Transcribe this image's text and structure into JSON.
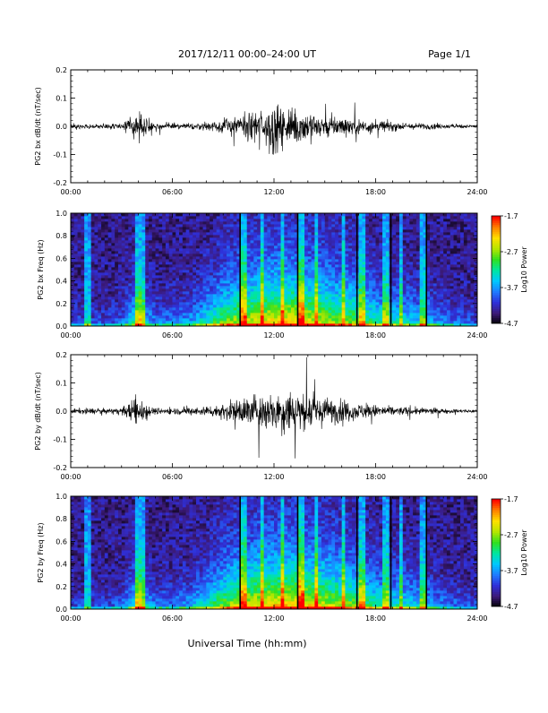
{
  "header": {
    "title": "2017/12/11   00:00–24:00 UT",
    "page": "Page 1/1"
  },
  "footer": {
    "xlabel": "Universal Time (hh:mm)"
  },
  "colorbar": {
    "label": "Log10 Power",
    "ticks": [
      "-1.7",
      "-2.7",
      "-3.7",
      "-4.7"
    ],
    "range": [
      -4.7,
      -1.7
    ],
    "colors": [
      "#000000",
      "#3c1a78",
      "#2f2fd8",
      "#1f7bff",
      "#00c8ff",
      "#00e6a0",
      "#30e020",
      "#b4e600",
      "#ffe000",
      "#ff8000",
      "#ff0000"
    ]
  },
  "chart_data": [
    {
      "type": "line",
      "name": "bx-waveform",
      "ylabel": "PG2 bx dB/dt (nT/sec)",
      "xlabel": "",
      "xticks": [
        "00:00",
        "06:00",
        "12:00",
        "18:00",
        "24:00"
      ],
      "yticks": [
        "0.2",
        "0.1",
        "0.0",
        "-0.1",
        "-0.2"
      ],
      "xlim": [
        0,
        24
      ],
      "ylim": [
        -0.2,
        0.2
      ],
      "envelope": {
        "hours": [
          0,
          1,
          2,
          3,
          3.5,
          4.0,
          4.3,
          4.7,
          5,
          6,
          7,
          8,
          9,
          10,
          10.5,
          11,
          11.5,
          12,
          12.5,
          13,
          13.5,
          14,
          15,
          16,
          17,
          18,
          19,
          20,
          21,
          22,
          23,
          24
        ],
        "amplitude": [
          0.015,
          0.015,
          0.015,
          0.02,
          0.05,
          0.09,
          0.07,
          0.03,
          0.02,
          0.02,
          0.02,
          0.025,
          0.04,
          0.07,
          0.09,
          0.1,
          0.11,
          0.15,
          0.12,
          0.11,
          0.12,
          0.1,
          0.08,
          0.06,
          0.05,
          0.04,
          0.03,
          0.02,
          0.02,
          0.015,
          0.012,
          0.01
        ]
      }
    },
    {
      "type": "heatmap",
      "name": "bx-spectrogram",
      "ylabel": "PG2 bx Freq (Hz)",
      "xlabel": "",
      "xticks": [
        "00:00",
        "06:00",
        "12:00",
        "18:00",
        "24:00"
      ],
      "yticks": [
        "1.0",
        "0.8",
        "0.6",
        "0.4",
        "0.2",
        "0.0"
      ],
      "xlim": [
        0,
        24
      ],
      "ylim": [
        0,
        1.0
      ],
      "zlim": [
        -4.7,
        -1.7
      ],
      "activity": {
        "hours": [
          0,
          2,
          3,
          3.5,
          4,
          4.5,
          5,
          6,
          7,
          8,
          9,
          10,
          11,
          12,
          13,
          14,
          15,
          16,
          17,
          18,
          19,
          20,
          21,
          22,
          23,
          24
        ],
        "level": [
          0.15,
          0.15,
          0.2,
          0.35,
          0.55,
          0.35,
          0.25,
          0.25,
          0.3,
          0.45,
          0.6,
          0.7,
          0.75,
          0.78,
          0.8,
          0.75,
          0.7,
          0.65,
          0.6,
          0.5,
          0.45,
          0.4,
          0.35,
          0.25,
          0.2,
          0.15
        ]
      },
      "bright_columns_h": [
        1.0,
        3.9,
        4.1,
        4.3,
        10.2,
        11.3,
        12.5,
        13.6,
        14.5,
        16.1,
        17.2,
        18.6,
        19.5,
        20.8
      ],
      "dark_lines_h": [
        10.0,
        13.4,
        16.9,
        18.9,
        21.0
      ]
    },
    {
      "type": "line",
      "name": "by-waveform",
      "ylabel": "PG2 by dB/dt (nT/sec)",
      "xlabel": "",
      "xticks": [
        "00:00",
        "06:00",
        "12:00",
        "18:00",
        "24:00"
      ],
      "yticks": [
        "0.2",
        "0.1",
        "0.0",
        "-0.1",
        "-0.2"
      ],
      "xlim": [
        0,
        24
      ],
      "ylim": [
        -0.2,
        0.2
      ],
      "envelope": {
        "hours": [
          0,
          1,
          2,
          3,
          3.5,
          4.0,
          4.3,
          4.7,
          5,
          6,
          7,
          8,
          9,
          10,
          10.5,
          11,
          11.5,
          12,
          12.5,
          13,
          13.5,
          14,
          15,
          16,
          17,
          18,
          19,
          20,
          21,
          22,
          23,
          24
        ],
        "amplitude": [
          0.015,
          0.02,
          0.015,
          0.02,
          0.06,
          0.1,
          0.08,
          0.03,
          0.02,
          0.02,
          0.025,
          0.03,
          0.05,
          0.08,
          0.1,
          0.11,
          0.12,
          0.12,
          0.14,
          0.15,
          0.12,
          0.11,
          0.09,
          0.07,
          0.05,
          0.04,
          0.03,
          0.025,
          0.02,
          0.015,
          0.012,
          0.01
        ]
      }
    },
    {
      "type": "heatmap",
      "name": "by-spectrogram",
      "ylabel": "PG2 by Freq (Hz)",
      "xlabel": "Universal Time (hh:mm)",
      "xticks": [
        "00:00",
        "06:00",
        "12:00",
        "18:00",
        "24:00"
      ],
      "yticks": [
        "1.0",
        "0.8",
        "0.6",
        "0.4",
        "0.2",
        "0.0"
      ],
      "xlim": [
        0,
        24
      ],
      "ylim": [
        0,
        1.0
      ],
      "zlim": [
        -4.7,
        -1.7
      ],
      "activity": {
        "hours": [
          0,
          2,
          3,
          3.5,
          4,
          4.5,
          5,
          6,
          7,
          8,
          9,
          10,
          11,
          12,
          13,
          14,
          15,
          16,
          17,
          18,
          19,
          20,
          21,
          22,
          23,
          24
        ],
        "level": [
          0.15,
          0.15,
          0.2,
          0.35,
          0.55,
          0.35,
          0.25,
          0.25,
          0.3,
          0.45,
          0.6,
          0.72,
          0.78,
          0.8,
          0.82,
          0.78,
          0.72,
          0.66,
          0.6,
          0.5,
          0.45,
          0.4,
          0.35,
          0.25,
          0.2,
          0.15
        ]
      },
      "bright_columns_h": [
        1.0,
        3.9,
        4.1,
        4.3,
        10.2,
        11.3,
        12.5,
        13.6,
        14.5,
        16.1,
        17.2,
        18.6,
        19.5,
        20.8
      ],
      "dark_lines_h": [
        10.0,
        13.4,
        16.9,
        18.9,
        21.0
      ]
    }
  ]
}
